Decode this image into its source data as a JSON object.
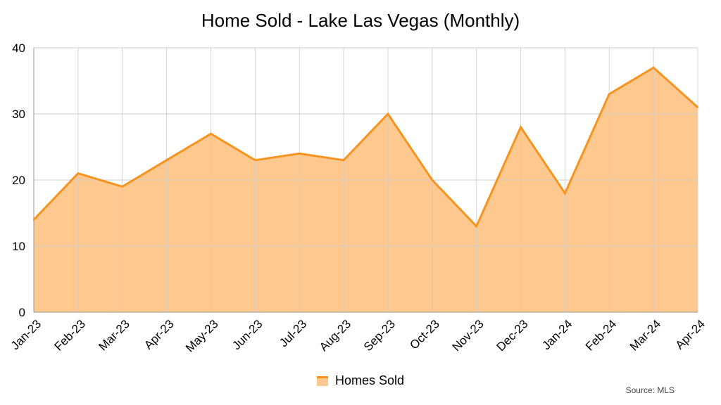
{
  "chart_data": {
    "type": "area",
    "title": "Home Sold - Lake Las Vegas (Monthly)",
    "xlabel": "",
    "ylabel": "",
    "categories": [
      "Jan-23",
      "Feb-23",
      "Mar-23",
      "Apr-23",
      "May-23",
      "Jun-23",
      "Jul-23",
      "Aug-23",
      "Sep-23",
      "Oct-23",
      "Nov-23",
      "Dec-23",
      "Jan-24",
      "Feb-24",
      "Mar-24",
      "Apr-24"
    ],
    "series": [
      {
        "name": "Homes Sold",
        "values": [
          14,
          21,
          19,
          23,
          27,
          23,
          24,
          23,
          30,
          20,
          13,
          28,
          18,
          33,
          37,
          31
        ]
      }
    ],
    "ylim": [
      0,
      40
    ],
    "yticks": [
      0,
      10,
      20,
      30,
      40
    ],
    "grid": true,
    "legend_position": "bottom",
    "x_tick_rotation": "diagonal",
    "colors": {
      "line": "#F7931E",
      "fill": "#FEC88F",
      "grid": "#CCCCCC",
      "axis": "#999999"
    }
  },
  "source_note": "Source: MLS"
}
